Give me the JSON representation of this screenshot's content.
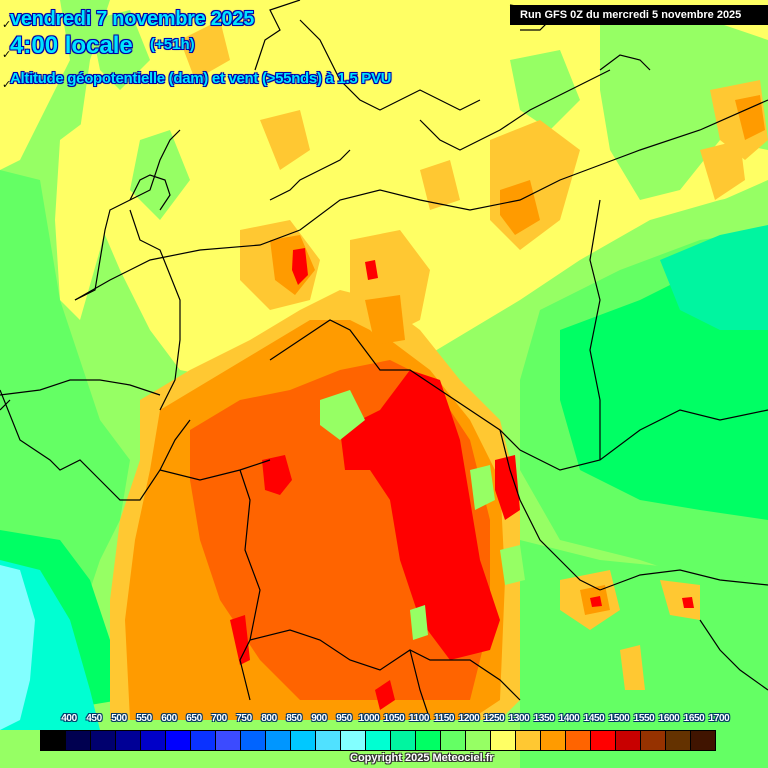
{
  "header": {
    "date": "vendredi 7 novembre 2025",
    "time": "4:00 locale",
    "offset": "(+51h)",
    "parameter": "Altitude géopotentielle (dam) et vent (>55nds) à 1.5 PVU"
  },
  "run_banner": "Run GFS 0Z du mercredi 5 novembre 2025",
  "colorbar": {
    "labels": [
      "400",
      "450",
      "500",
      "550",
      "600",
      "650",
      "700",
      "750",
      "800",
      "850",
      "900",
      "950",
      "1000",
      "1050",
      "1100",
      "1150",
      "1200",
      "1250",
      "1300",
      "1350",
      "1400",
      "1450",
      "1500",
      "1550",
      "1600",
      "1650",
      "1700"
    ],
    "colors": [
      "#000000",
      "#000050",
      "#00006e",
      "#000096",
      "#0000c8",
      "#0000ff",
      "#0a32ff",
      "#3c4bff",
      "#0064ff",
      "#0096ff",
      "#00c8ff",
      "#50e1ff",
      "#82ffff",
      "#00ffd2",
      "#00f5a0",
      "#00ff64",
      "#64ff64",
      "#96ff64",
      "#ffff64",
      "#ffc832",
      "#ff9b00",
      "#ff6400",
      "#ff0000",
      "#c80000",
      "#963200",
      "#643200",
      "#401400"
    ]
  },
  "copyright": "Copyright 2025 Meteociel.fr",
  "map": {
    "background": "#96ff64",
    "fields": {
      "yellow": "#ffff64",
      "light_orange": "#ffc832",
      "orange": "#ff9b00",
      "dark_orange": "#ff6400",
      "red": "#ff0000",
      "light_green": "#96ff64",
      "green": "#64ff64",
      "bright_green": "#00ff64",
      "teal": "#00f5a0",
      "aqua": "#00ffd2",
      "cyan_light": "#82ffff"
    },
    "wind_barb_icon": "wind-barb-icon"
  }
}
